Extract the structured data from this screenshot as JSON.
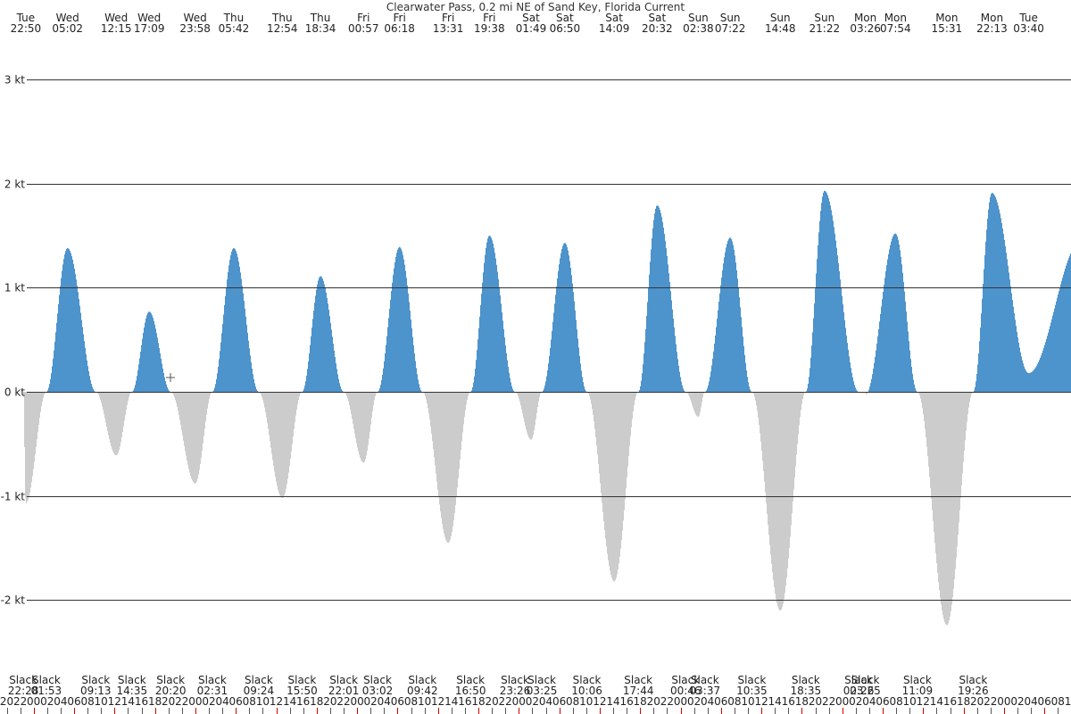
{
  "colors": {
    "flood": "#4d93cc",
    "ebb": "#cccccc",
    "grid": "#333333",
    "text": "#222222",
    "tick_red": "#cc0000",
    "tick_gray": "#555555"
  },
  "chart_data": {
    "type": "area",
    "title": "Clearwater Pass, 0.2 mi NE of Sand Key, Florida Current",
    "xlabel": "",
    "ylabel": "",
    "unit": "kt",
    "ylim": [
      -2.75,
      3.2
    ],
    "yticks": [
      3,
      2,
      1,
      0,
      -1,
      -2
    ],
    "ytick_labels": [
      "3 kt",
      "2 kt",
      "1 kt",
      "0 kt",
      "-1 kt",
      "-2 kt"
    ],
    "grid": true,
    "x_start": "Tue 22:28 (truncated left edge)",
    "extremes": [
      {
        "day": "Tue",
        "time": "22:50",
        "value": -1.07
      },
      {
        "day": "Wed",
        "time": "05:02",
        "value": 1.38
      },
      {
        "day": "Wed",
        "time": "12:15",
        "value": -0.61
      },
      {
        "day": "Wed",
        "time": "17:09",
        "value": 0.77
      },
      {
        "day": "Wed",
        "time": "23:58",
        "value": -0.88
      },
      {
        "day": "Thu",
        "time": "05:42",
        "value": 1.38
      },
      {
        "day": "Thu",
        "time": "12:54",
        "value": -1.02
      },
      {
        "day": "Thu",
        "time": "18:34",
        "value": 1.11
      },
      {
        "day": "Fri",
        "time": "00:57",
        "value": -0.68
      },
      {
        "day": "Fri",
        "time": "06:18",
        "value": 1.39
      },
      {
        "day": "Fri",
        "time": "13:31",
        "value": -1.45
      },
      {
        "day": "Fri",
        "time": "19:38",
        "value": 1.5
      },
      {
        "day": "Sat",
        "time": "01:49",
        "value": -0.46
      },
      {
        "day": "Sat",
        "time": "06:50",
        "value": 1.43
      },
      {
        "day": "Sat",
        "time": "14:09",
        "value": -1.82
      },
      {
        "day": "Sat",
        "time": "20:32",
        "value": 1.79
      },
      {
        "day": "Sun",
        "time": "02:38",
        "value": -0.24
      },
      {
        "day": "Sun",
        "time": "07:22",
        "value": 1.48
      },
      {
        "day": "Sun",
        "time": "14:48",
        "value": -2.1
      },
      {
        "day": "Sun",
        "time": "21:22",
        "value": 1.93
      },
      {
        "day": "Mon",
        "time": "03:26",
        "value": -0.03
      },
      {
        "day": "Mon",
        "time": "07:54",
        "value": 1.52
      },
      {
        "day": "Mon",
        "time": "15:31",
        "value": -2.24
      },
      {
        "day": "Mon",
        "time": "22:13",
        "value": 1.91
      },
      {
        "day": "Tue",
        "time": "03:40",
        "value": 0.18
      }
    ],
    "top_labels": [
      {
        "day": "Tue",
        "time": "22:50"
      },
      {
        "day": "Wed",
        "time": "05:02"
      },
      {
        "day": "Wed",
        "time": "12:15"
      },
      {
        "day": "Wed",
        "time": "17:09"
      },
      {
        "day": "Wed",
        "time": "23:58"
      },
      {
        "day": "Thu",
        "time": "05:42"
      },
      {
        "day": "Thu",
        "time": "12:54"
      },
      {
        "day": "Thu",
        "time": "18:34"
      },
      {
        "day": "Fri",
        "time": "00:57"
      },
      {
        "day": "Fri",
        "time": "06:18"
      },
      {
        "day": "Fri",
        "time": "13:31"
      },
      {
        "day": "Fri",
        "time": "19:38"
      },
      {
        "day": "Sat",
        "time": "01:49"
      },
      {
        "day": "Sat",
        "time": "06:50"
      },
      {
        "day": "Sat",
        "time": "14:09"
      },
      {
        "day": "Sat",
        "time": "20:32"
      },
      {
        "day": "Sun",
        "time": "02:38"
      },
      {
        "day": "Sun",
        "time": "07:22"
      },
      {
        "day": "Sun",
        "time": "14:48"
      },
      {
        "day": "Sun",
        "time": "21:22"
      },
      {
        "day": "Mon",
        "time": "03:26"
      },
      {
        "day": "Mon",
        "time": "07:54"
      },
      {
        "day": "Mon",
        "time": "15:31"
      },
      {
        "day": "Mon",
        "time": "22:13"
      },
      {
        "day": "Tue",
        "time": "03:40"
      }
    ],
    "slack_label": "Slack",
    "slack_times": [
      {
        "day": "Tue",
        "time": "22:28"
      },
      {
        "day": "Wed",
        "time": "01:53"
      },
      {
        "day": "Wed",
        "time": "09:13"
      },
      {
        "day": "Wed",
        "time": "14:35"
      },
      {
        "day": "Wed",
        "time": "20:20"
      },
      {
        "day": "Thu",
        "time": "02:31"
      },
      {
        "day": "Thu",
        "time": "09:24"
      },
      {
        "day": "Thu",
        "time": "15:50"
      },
      {
        "day": "Thu",
        "time": "22:01"
      },
      {
        "day": "Fri",
        "time": "03:02"
      },
      {
        "day": "Fri",
        "time": "09:42"
      },
      {
        "day": "Fri",
        "time": "16:50"
      },
      {
        "day": "Fri",
        "time": "23:26"
      },
      {
        "day": "Sat",
        "time": "03:25"
      },
      {
        "day": "Sat",
        "time": "10:06"
      },
      {
        "day": "Sat",
        "time": "17:44"
      },
      {
        "day": "Sun",
        "time": "00:46"
      },
      {
        "day": "Sun",
        "time": "03:37"
      },
      {
        "day": "Sun",
        "time": "10:35"
      },
      {
        "day": "Sun",
        "time": "18:35"
      },
      {
        "day": "Mon",
        "time": "02:26"
      },
      {
        "day": "Mon",
        "time": "03:25"
      },
      {
        "day": "Mon",
        "time": "11:09"
      },
      {
        "day": "Mon",
        "time": "19:26"
      }
    ],
    "hour_ticks_start": "Tue 20:00",
    "hour_ticks_end": "Tue 06:00"
  }
}
